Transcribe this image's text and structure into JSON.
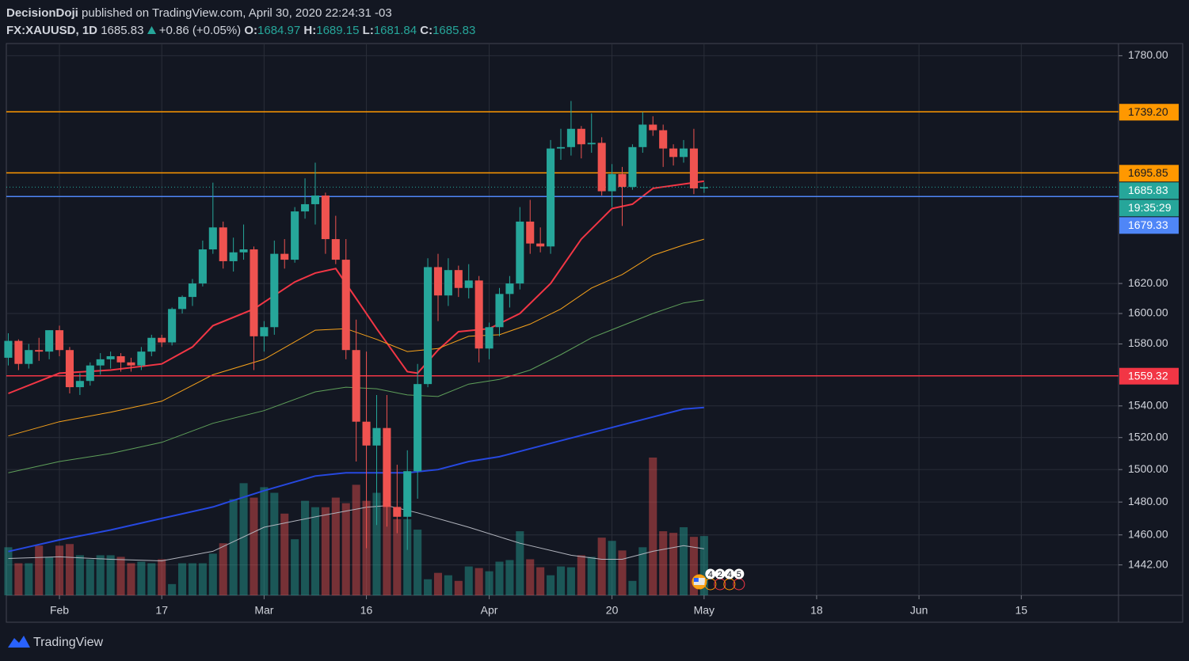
{
  "chart_data": {
    "type": "candlestick",
    "author": "DecisionDoji",
    "published": "published on TradingView.com, April 30, 2020 22:24:31 -03",
    "title": "FX:XAUUSD, 1D",
    "last": 1685.83,
    "change": "+0.86 (+0.05%)",
    "ohlc_labels": [
      "O:",
      "H:",
      "L:",
      "C:"
    ],
    "brand": "TradingView",
    "countdown": "19:35:29",
    "event_badges": [
      "4",
      "2",
      "4",
      "5"
    ],
    "up_color": "#26a69a",
    "down_color": "#ef5350",
    "log_scale": true,
    "grid": true,
    "ylim": [
      1424,
      1789
    ],
    "yticks": [
      {
        "value": 1780,
        "label": "1780.00"
      },
      {
        "value": 1620,
        "label": "1620.00"
      },
      {
        "value": 1600,
        "label": "1600.00"
      },
      {
        "value": 1580,
        "label": "1580.00"
      },
      {
        "value": 1540,
        "label": "1540.00"
      },
      {
        "value": 1520,
        "label": "1520.00"
      },
      {
        "value": 1500,
        "label": "1500.00"
      },
      {
        "value": 1480,
        "label": "1480.00"
      },
      {
        "value": 1460,
        "label": "1460.00"
      },
      {
        "value": 1442,
        "label": "1442.00"
      }
    ],
    "xlim": [
      -0.19,
      108.5
    ],
    "xticks": [
      {
        "value": 5,
        "label": "Feb"
      },
      {
        "value": 15,
        "label": "17"
      },
      {
        "value": 25,
        "label": "Mar"
      },
      {
        "value": 35,
        "label": "16"
      },
      {
        "value": 47,
        "label": "Apr"
      },
      {
        "value": 59,
        "label": "20"
      },
      {
        "value": 68,
        "label": "May"
      },
      {
        "value": 79,
        "label": "18"
      },
      {
        "value": 89,
        "label": "Jun"
      },
      {
        "value": 99,
        "label": "15"
      }
    ],
    "open": [
      1571,
      1582,
      1567,
      1576,
      1575,
      1589,
      1576,
      1552,
      1556,
      1566,
      1570,
      1572,
      1568,
      1566,
      1575,
      1584,
      1581,
      1603,
      1611,
      1620,
      1643,
      1658,
      1635,
      1641,
      1643,
      1585,
      1591,
      1640,
      1636,
      1669,
      1674,
      1680,
      1650,
      1636,
      1576,
      1530,
      1515,
      1526,
      1477,
      1471,
      1499,
      1554,
      1631,
      1612,
      1629,
      1617,
      1622,
      1577,
      1591,
      1613,
      1620,
      1662,
      1647,
      1645,
      1713,
      1714,
      1727,
      1716,
      1717,
      1683,
      1695,
      1686,
      1714,
      1730,
      1726,
      1713,
      1707,
      1713,
      1684.97
    ],
    "high": [
      1587,
      1583,
      1580,
      1584,
      1589,
      1592,
      1578,
      1561,
      1568,
      1574,
      1575,
      1574,
      1571,
      1578,
      1586,
      1586,
      1604,
      1612,
      1623,
      1649,
      1689,
      1662,
      1651,
      1660,
      1645,
      1595,
      1649,
      1650,
      1672,
      1692,
      1703,
      1682,
      1666,
      1650,
      1596,
      1575,
      1547,
      1547,
      1503,
      1512,
      1567,
      1637,
      1640,
      1637,
      1632,
      1633,
      1625,
      1594,
      1617,
      1625,
      1672,
      1677,
      1658,
      1719,
      1727,
      1747,
      1729,
      1738,
      1721,
      1702,
      1700,
      1716,
      1739,
      1736,
      1730,
      1716,
      1719,
      1727,
      1689.15
    ],
    "low": [
      1566,
      1563,
      1564,
      1569,
      1570,
      1572,
      1548,
      1547,
      1553,
      1560,
      1564,
      1562,
      1562,
      1563,
      1572,
      1578,
      1579,
      1600,
      1605,
      1618,
      1640,
      1630,
      1628,
      1636,
      1563,
      1575,
      1586,
      1630,
      1634,
      1664,
      1660,
      1640,
      1633,
      1570,
      1505,
      1452,
      1466,
      1465,
      1461,
      1451,
      1482,
      1552,
      1595,
      1605,
      1611,
      1610,
      1568,
      1570,
      1585,
      1604,
      1616,
      1640,
      1641,
      1640,
      1705,
      1708,
      1706,
      1710,
      1680,
      1672,
      1659,
      1684,
      1710,
      1722,
      1700,
      1701,
      1703,
      1681,
      1681.84
    ],
    "close": [
      1582,
      1567,
      1576,
      1575,
      1589,
      1576,
      1552,
      1556,
      1566,
      1570,
      1572,
      1568,
      1566,
      1575,
      1584,
      1581,
      1603,
      1611,
      1620,
      1643,
      1658,
      1635,
      1641,
      1643,
      1585,
      1591,
      1640,
      1636,
      1669,
      1674,
      1680,
      1650,
      1636,
      1576,
      1530,
      1515,
      1526,
      1477,
      1471,
      1499,
      1554,
      1631,
      1612,
      1629,
      1617,
      1622,
      1577,
      1591,
      1613,
      1620,
      1662,
      1647,
      1645,
      1713,
      1714,
      1727,
      1716,
      1717,
      1683,
      1695,
      1686,
      1714,
      1730,
      1726,
      1713,
      1707,
      1713,
      1685,
      1685.83
    ],
    "volume": [
      60,
      40,
      40,
      62,
      48,
      62,
      64,
      50,
      45,
      50,
      50,
      48,
      40,
      42,
      40,
      45,
      14,
      40,
      40,
      40,
      52,
      65,
      120,
      140,
      122,
      135,
      128,
      102,
      70,
      118,
      110,
      110,
      122,
      115,
      138,
      118,
      128,
      118,
      95,
      95,
      82,
      20,
      28,
      25,
      18,
      36,
      34,
      30,
      42,
      44,
      80,
      45,
      35,
      25,
      36,
      35,
      50,
      48,
      72,
      68,
      56,
      18,
      60,
      172,
      80,
      78,
      85,
      73,
      74
    ],
    "moving_averages": [
      {
        "color": "#f23645",
        "x": [
          0,
          5,
          10,
          15,
          18,
          20,
          24,
          28,
          30,
          32,
          34,
          36,
          39,
          40,
          42,
          44,
          47,
          50,
          53,
          56,
          59,
          61,
          63,
          66,
          68
        ],
        "values": [
          1548,
          1561,
          1563,
          1567,
          1578,
          1592,
          1603,
          1621,
          1627,
          1630,
          1610,
          1590,
          1562,
          1561,
          1576,
          1588,
          1590,
          1600,
          1620,
          1650,
          1671,
          1674,
          1685,
          1688,
          1690
        ]
      },
      {
        "color": "#f7a21b",
        "x": [
          0,
          5,
          10,
          15,
          20,
          25,
          30,
          33,
          36,
          39,
          42,
          45,
          48,
          51,
          54,
          57,
          60,
          63,
          66,
          68
        ],
        "values": [
          1521,
          1530,
          1536,
          1543,
          1560,
          1570,
          1589,
          1590,
          1583,
          1575,
          1577,
          1585,
          1586,
          1593,
          1603,
          1617,
          1626,
          1639,
          1646,
          1650
        ]
      },
      {
        "color": "#5fa05a",
        "x": [
          0,
          5,
          10,
          15,
          20,
          25,
          30,
          33,
          36,
          39,
          42,
          45,
          48,
          51,
          54,
          57,
          60,
          63,
          66,
          68
        ],
        "values": [
          1498,
          1505,
          1510,
          1517,
          1529,
          1537,
          1549,
          1552,
          1551,
          1547,
          1546,
          1554,
          1557,
          1563,
          1573,
          1584,
          1592,
          1600,
          1607,
          1609
        ]
      },
      {
        "color": "#2648e0",
        "x": [
          0,
          5,
          10,
          15,
          20,
          25,
          30,
          33,
          36,
          39,
          42,
          45,
          48,
          51,
          54,
          57,
          60,
          63,
          66,
          68
        ],
        "values": [
          1450,
          1457,
          1463,
          1470,
          1477,
          1487,
          1496,
          1498,
          1498,
          1498,
          1500,
          1505,
          1508,
          1513,
          1518,
          1523,
          1528,
          1533,
          1538,
          1539
        ]
      }
    ],
    "volume_ma": {
      "color": "#b2b5be",
      "x": [
        0,
        5,
        10,
        15,
        20,
        25,
        30,
        35,
        37,
        40,
        45,
        50,
        55,
        58,
        60,
        63,
        66,
        68
      ],
      "values": [
        46,
        48,
        45,
        43,
        55,
        85,
        98,
        110,
        112,
        103,
        85,
        65,
        50,
        45,
        45,
        55,
        62,
        58
      ]
    },
    "price_lines": [
      {
        "value": 1739.2,
        "label": "1739.20",
        "color": "#ff9800"
      },
      {
        "value": 1695.85,
        "color": "#ff9800"
      },
      {
        "value": 1685.83,
        "color": "#26a69a",
        "style": "dotted"
      },
      {
        "value": 1679.33,
        "color": "#4f86f7"
      },
      {
        "value": 1559.32,
        "color": "#f23645"
      }
    ]
  }
}
